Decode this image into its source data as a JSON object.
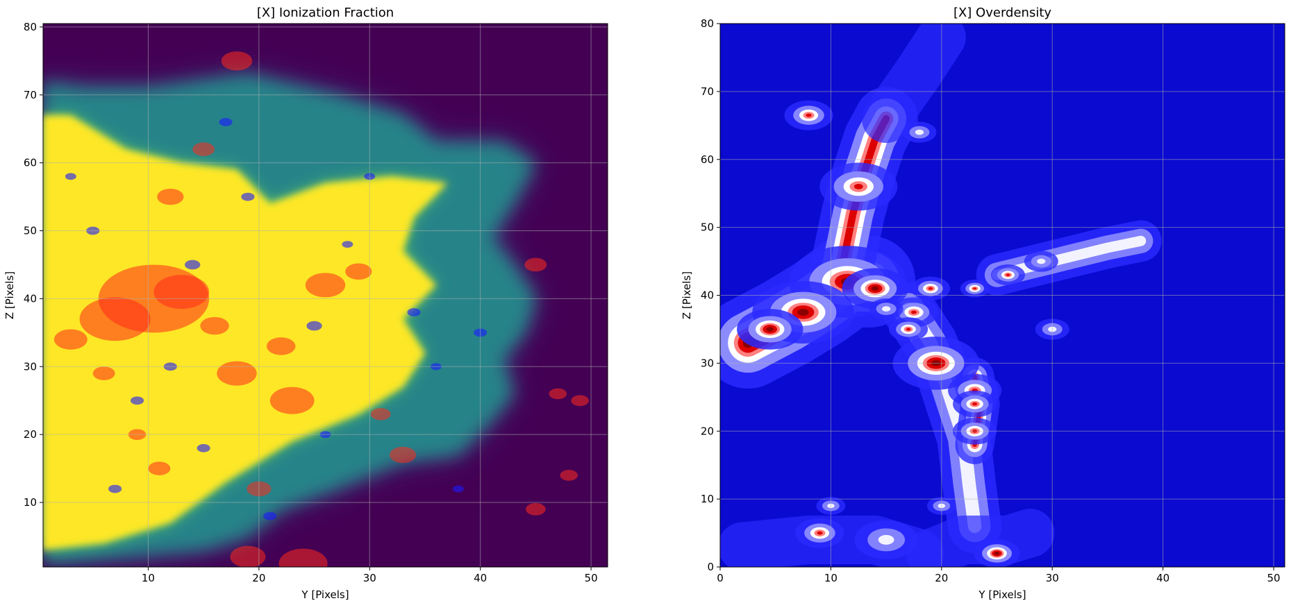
{
  "chart_data": [
    {
      "type": "heatmap",
      "title": "[X] Ionization Fraction",
      "xlabel": "Y [Pixels]",
      "ylabel": "Z [Pixels]",
      "xlim": [
        0.5,
        51.5
      ],
      "ylim": [
        0.5,
        80.5
      ],
      "xticks": [
        10,
        20,
        30,
        40,
        50
      ],
      "yticks": [
        10,
        20,
        30,
        40,
        50,
        60,
        70,
        80
      ],
      "grid": true,
      "colormap": [
        "#440154",
        "#3b528b",
        "#21918c",
        "#5ec962",
        "#fde725"
      ],
      "background_color": "#440154",
      "overlay_marker_colors": {
        "high": "#ff2a1a",
        "low": "#1a1aff"
      },
      "ionized_region_boundary": [
        [
          0.5,
          1
        ],
        [
          8,
          2
        ],
        [
          15,
          3
        ],
        [
          19,
          5
        ],
        [
          22,
          9
        ],
        [
          27,
          12
        ],
        [
          33,
          16
        ],
        [
          38,
          17
        ],
        [
          41,
          22
        ],
        [
          43,
          26
        ],
        [
          42,
          31
        ],
        [
          44,
          35
        ],
        [
          45,
          40
        ],
        [
          43,
          45
        ],
        [
          41,
          49
        ],
        [
          43,
          54
        ],
        [
          45,
          60
        ],
        [
          42,
          63
        ],
        [
          36,
          63
        ],
        [
          33,
          67
        ],
        [
          27,
          70
        ],
        [
          19,
          73
        ],
        [
          10,
          71
        ],
        [
          4,
          71
        ],
        [
          0.5,
          72
        ]
      ],
      "ionized_core_boundary": [
        [
          0.5,
          3
        ],
        [
          6,
          4
        ],
        [
          12,
          7
        ],
        [
          17,
          13
        ],
        [
          23,
          19
        ],
        [
          29,
          23
        ],
        [
          33,
          27
        ],
        [
          35,
          32
        ],
        [
          33,
          37
        ],
        [
          36,
          42
        ],
        [
          33,
          47
        ],
        [
          34,
          52
        ],
        [
          37,
          57
        ],
        [
          32,
          58
        ],
        [
          26,
          57
        ],
        [
          21,
          54
        ],
        [
          18,
          59
        ],
        [
          13,
          60
        ],
        [
          8,
          62
        ],
        [
          3,
          67
        ],
        [
          0.5,
          67
        ]
      ],
      "red_markers": [
        [
          10.5,
          40,
          5
        ],
        [
          7,
          37,
          3.2
        ],
        [
          13,
          41,
          2.5
        ],
        [
          3,
          34,
          1.5
        ],
        [
          23,
          25,
          2
        ],
        [
          18,
          29,
          1.8
        ],
        [
          24,
          1,
          2.2
        ],
        [
          19,
          2,
          1.6
        ],
        [
          33,
          17,
          1.2
        ],
        [
          45,
          45,
          1
        ],
        [
          18,
          75,
          1.4
        ],
        [
          22,
          33,
          1.3
        ],
        [
          26,
          42,
          1.8
        ],
        [
          16,
          36,
          1.3
        ],
        [
          29,
          44,
          1.2
        ],
        [
          6,
          29,
          1
        ],
        [
          11,
          15,
          1
        ],
        [
          15,
          62,
          1
        ],
        [
          12,
          55,
          1.2
        ],
        [
          20,
          12,
          1.1
        ],
        [
          9,
          20,
          0.8
        ],
        [
          31,
          23,
          0.9
        ],
        [
          47,
          26,
          0.8
        ],
        [
          45,
          9,
          0.9
        ],
        [
          49,
          25,
          0.8
        ],
        [
          48,
          14,
          0.8
        ]
      ],
      "blue_markers": [
        [
          5,
          50,
          0.6
        ],
        [
          14,
          45,
          0.7
        ],
        [
          19,
          55,
          0.6
        ],
        [
          25,
          36,
          0.7
        ],
        [
          28,
          48,
          0.5
        ],
        [
          34,
          38,
          0.6
        ],
        [
          9,
          25,
          0.6
        ],
        [
          15,
          18,
          0.6
        ],
        [
          21,
          8,
          0.6
        ],
        [
          26,
          20,
          0.5
        ],
        [
          36,
          30,
          0.5
        ],
        [
          40,
          35,
          0.6
        ],
        [
          12,
          30,
          0.6
        ],
        [
          3,
          58,
          0.5
        ],
        [
          17,
          66,
          0.6
        ],
        [
          30,
          58,
          0.5
        ],
        [
          38,
          12,
          0.5
        ],
        [
          7,
          12,
          0.6
        ]
      ]
    },
    {
      "type": "heatmap",
      "title": "[X] Overdensity",
      "xlabel": "Y [Pixels]",
      "ylabel": "Z [Pixels]",
      "xlim": [
        0,
        51
      ],
      "ylim": [
        0,
        80
      ],
      "xticks": [
        0,
        10,
        20,
        30,
        40,
        50
      ],
      "yticks": [
        0,
        10,
        20,
        30,
        40,
        50,
        60,
        70,
        80
      ],
      "grid": true,
      "colormap": [
        "#0000cc",
        "#2a2aff",
        "#8c8cff",
        "#ffffff",
        "#ff8080",
        "#dd0000",
        "#8b0000"
      ],
      "background_color": "#0a0ad0",
      "filaments": [
        {
          "path": [
            [
              2.5,
              33
            ],
            [
              6,
              36
            ],
            [
              9,
              39
            ],
            [
              11.5,
              42
            ],
            [
              13.5,
              42
            ]
          ],
          "level": "peak",
          "width": 3.6
        },
        {
          "path": [
            [
              11,
              44
            ],
            [
              12,
              52
            ],
            [
              13,
              58
            ],
            [
              14,
              63
            ],
            [
              15,
              66
            ]
          ],
          "level": "high",
          "width": 2.6
        },
        {
          "path": [
            [
              17,
              38
            ],
            [
              19,
              33
            ],
            [
              20,
              29
            ],
            [
              21,
              24
            ],
            [
              22,
              19
            ],
            [
              22.5,
              12
            ],
            [
              23,
              6
            ]
          ],
          "level": "mid",
          "width": 2.2
        },
        {
          "path": [
            [
              23,
              28
            ],
            [
              23.5,
              24
            ],
            [
              23,
              18
            ]
          ],
          "level": "high",
          "width": 1.6
        },
        {
          "path": [
            [
              25,
              43
            ],
            [
              30,
              45
            ],
            [
              35,
              47
            ],
            [
              38,
              48
            ]
          ],
          "level": "mid",
          "width": 1.7
        },
        {
          "path": [
            [
              19,
              2
            ],
            [
              22,
              4
            ],
            [
              26,
              4
            ],
            [
              28,
              5
            ]
          ],
          "level": "low",
          "width": 2.2
        },
        {
          "path": [
            [
              15,
              66
            ],
            [
              18,
              73
            ],
            [
              20,
              78
            ]
          ],
          "level": "low",
          "width": 2.2
        },
        {
          "path": [
            [
              2,
              3
            ],
            [
              8,
              4
            ],
            [
              14,
              4
            ],
            [
              18,
              2
            ]
          ],
          "level": "low",
          "width": 2.2
        }
      ],
      "hotspots": [
        [
          11.5,
          42,
          2.3,
          "peak"
        ],
        [
          7.5,
          37.5,
          2,
          "peak"
        ],
        [
          4.5,
          35,
          1.3,
          "peak"
        ],
        [
          19.5,
          30,
          1.7,
          "peak"
        ],
        [
          12.5,
          56,
          1.6,
          "high"
        ],
        [
          14,
          41,
          1.3,
          "peak"
        ],
        [
          8,
          66.5,
          1,
          "high"
        ],
        [
          9,
          5,
          1,
          "high"
        ],
        [
          25,
          2,
          0.9,
          "peak"
        ],
        [
          15,
          4,
          1.3,
          "mid"
        ],
        [
          23,
          26,
          1.1,
          "high"
        ],
        [
          23,
          24,
          0.9,
          "high"
        ],
        [
          23,
          20,
          0.9,
          "high"
        ],
        [
          17.5,
          37.5,
          1,
          "high"
        ],
        [
          17,
          35,
          0.8,
          "high"
        ],
        [
          19,
          41,
          0.8,
          "high"
        ],
        [
          26,
          43,
          0.7,
          "high"
        ],
        [
          23,
          41,
          0.6,
          "high"
        ],
        [
          29,
          45,
          0.7,
          "mid"
        ],
        [
          15,
          38,
          0.7,
          "mid"
        ],
        [
          18,
          64,
          0.7,
          "mid"
        ],
        [
          30,
          35,
          0.7,
          "mid"
        ],
        [
          20,
          9,
          0.6,
          "mid"
        ],
        [
          10,
          9,
          0.6,
          "mid"
        ]
      ]
    }
  ]
}
